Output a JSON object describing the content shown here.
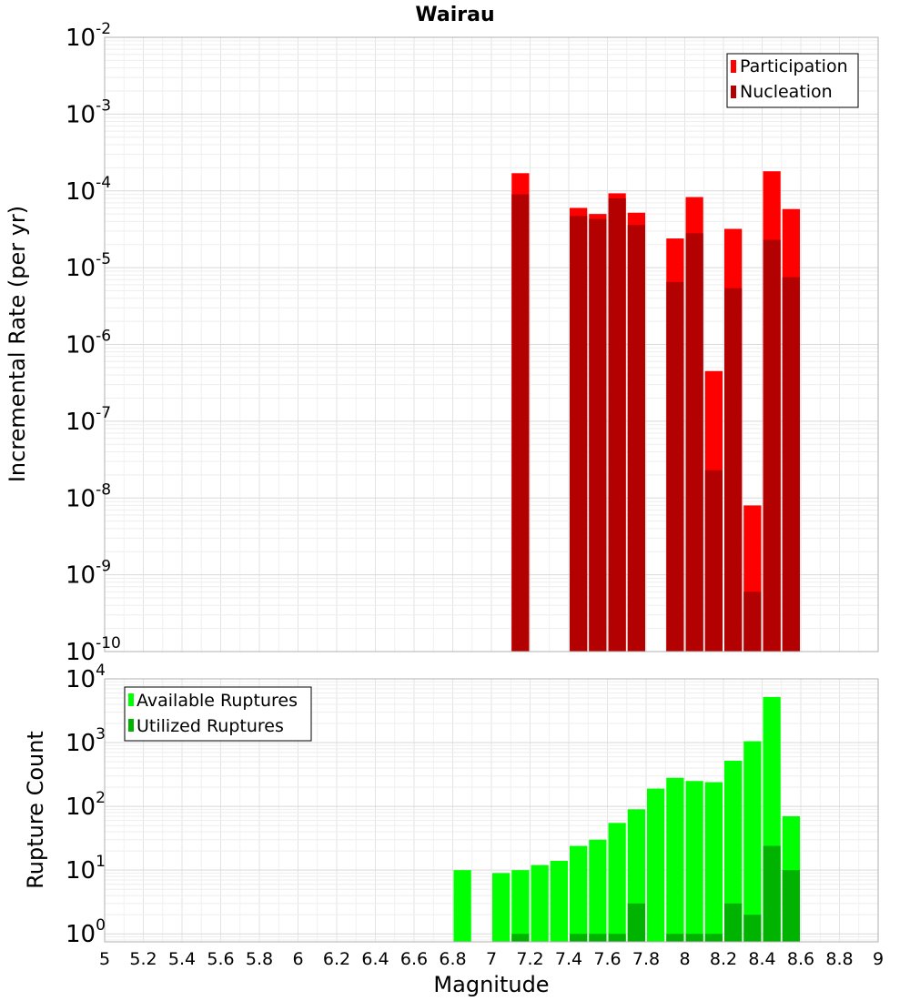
{
  "chart_data": [
    {
      "type": "bar",
      "title": "Wairau",
      "ylabel": "Incremental Rate (per yr)",
      "xlabel": "",
      "scale": "log",
      "ylim": [
        1e-10,
        0.01
      ],
      "xlim": [
        5,
        9
      ],
      "grid": true,
      "legend_position": "top-right",
      "series": [
        {
          "name": "Participation",
          "color": "#ff0000",
          "x": [
            7.15,
            7.45,
            7.55,
            7.65,
            7.75,
            7.95,
            8.05,
            8.15,
            8.25,
            8.35,
            8.45,
            8.55
          ],
          "values": [
            0.00017,
            6e-05,
            5e-05,
            9.3e-05,
            5.2e-05,
            2.4e-05,
            8.3e-05,
            4.5e-07,
            3.2e-05,
            8e-09,
            0.00018,
            5.8e-05
          ]
        },
        {
          "name": "Nucleation",
          "color": "#b30000",
          "x": [
            7.15,
            7.45,
            7.55,
            7.65,
            7.75,
            7.95,
            8.05,
            8.15,
            8.25,
            8.35,
            8.45,
            8.55
          ],
          "values": [
            9e-05,
            4.7e-05,
            4.3e-05,
            8e-05,
            3.6e-05,
            6.5e-06,
            2.8e-05,
            2.3e-08,
            5.4e-06,
            6e-10,
            2.3e-05,
            7.5e-06
          ]
        }
      ],
      "y_ticks": [
        {
          "base": "10",
          "exp": "-10"
        },
        {
          "base": "10",
          "exp": "-9"
        },
        {
          "base": "10",
          "exp": "-8"
        },
        {
          "base": "10",
          "exp": "-7"
        },
        {
          "base": "10",
          "exp": "-6"
        },
        {
          "base": "10",
          "exp": "-5"
        },
        {
          "base": "10",
          "exp": "-4"
        },
        {
          "base": "10",
          "exp": "-3"
        },
        {
          "base": "10",
          "exp": "-2"
        }
      ]
    },
    {
      "type": "bar",
      "ylabel": "Rupture Count",
      "xlabel": "Magnitude",
      "scale": "log",
      "ylim": [
        0.75,
        10000
      ],
      "xlim": [
        5,
        9
      ],
      "grid": true,
      "legend_position": "top-left",
      "series": [
        {
          "name": "Available Ruptures",
          "color": "#00ff00",
          "x": [
            6.85,
            7.05,
            7.15,
            7.25,
            7.35,
            7.45,
            7.55,
            7.65,
            7.75,
            7.85,
            7.95,
            8.05,
            8.15,
            8.25,
            8.35,
            8.45,
            8.55
          ],
          "values": [
            10,
            9,
            10,
            12,
            14,
            24,
            30,
            55,
            90,
            190,
            280,
            250,
            240,
            520,
            1050,
            5200,
            70
          ]
        },
        {
          "name": "Utilized Ruptures",
          "color": "#00b300",
          "x": [
            7.15,
            7.45,
            7.55,
            7.65,
            7.75,
            7.95,
            8.05,
            8.15,
            8.25,
            8.35,
            8.45,
            8.55
          ],
          "values": [
            1,
            1,
            1,
            1,
            3,
            1,
            1,
            1,
            3,
            2,
            24,
            10
          ]
        }
      ],
      "y_ticks": [
        {
          "base": "10",
          "exp": "0"
        },
        {
          "base": "10",
          "exp": "1"
        },
        {
          "base": "10",
          "exp": "2"
        },
        {
          "base": "10",
          "exp": "3"
        },
        {
          "base": "10",
          "exp": "4"
        }
      ]
    }
  ],
  "x_ticks": [
    "5",
    "5.2",
    "5.4",
    "5.6",
    "5.8",
    "6",
    "6.2",
    "6.4",
    "6.6",
    "6.8",
    "7",
    "7.2",
    "7.4",
    "7.6",
    "7.8",
    "8",
    "8.2",
    "8.4",
    "8.6",
    "8.8",
    "9"
  ]
}
